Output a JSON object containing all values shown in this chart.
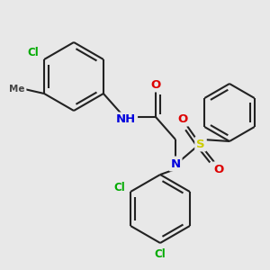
{
  "bg_color": "#e8e8e8",
  "bond_color": "#222222",
  "bond_width": 1.5,
  "atom_colors": {
    "N": "#0000dd",
    "O": "#dd0000",
    "S": "#cccc00",
    "Cl": "#00aa00",
    "C": "#222222",
    "H": "#555555",
    "Me": "#444444"
  },
  "font_size": 8.5,
  "fig_size": [
    3.0,
    3.0
  ],
  "dpi": 100
}
